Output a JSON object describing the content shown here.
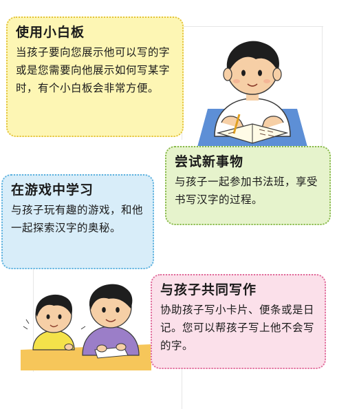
{
  "cards": [
    {
      "title": "使用小白板",
      "body": "当孩子要向您展示他可以写的字或是您需要向他展示如何写某字时，有个小白板会非常方便。",
      "bg": "#fdf6b4",
      "border": "#e3c23a"
    },
    {
      "title": "尝试新事物",
      "body": "与孩子一起参加书法班，享受书写汉字的过程。",
      "bg": "#e6f3cc",
      "border": "#86b84a"
    },
    {
      "title": "在游戏中学习",
      "body": "与孩子玩有趣的游戏，和他一起探索汉字的奥秘。",
      "bg": "#d8edf9",
      "border": "#5ab0de"
    },
    {
      "title": "与孩子共同写作",
      "body": "协助孩子写小卡片、便条或是日记。您可以帮孩子写上他不会写的字。",
      "bg": "#fbe0ea",
      "border": "#e06a9a"
    }
  ],
  "illustrations": {
    "writing_boy": "boy-writing-illustration",
    "parent_child": "parent-child-writing-illustration"
  }
}
